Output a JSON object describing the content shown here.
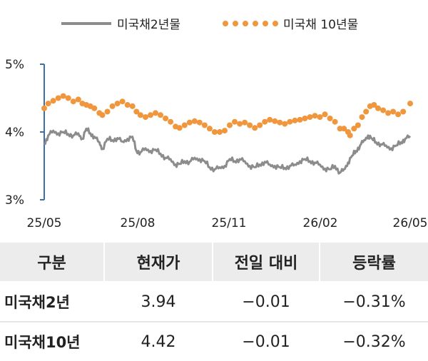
{
  "chart_data": {
    "type": "line",
    "legend_position": "top",
    "x_ticks": [
      "25/05",
      "25/08",
      "25/11",
      "26/02",
      "26/05"
    ],
    "y_ticks": [
      "5%",
      "4%",
      "3%"
    ],
    "ylim": [
      3,
      5
    ],
    "xlim": [
      "2025-05-01",
      "2026-05-01"
    ],
    "grid": false,
    "series": [
      {
        "name": "미국채2년물",
        "style": "solid",
        "color": "#8c8c8c",
        "points": [
          [
            "2025-05-01",
            3.82
          ],
          [
            "2025-05-05",
            3.95
          ],
          [
            "2025-05-10",
            4.02
          ],
          [
            "2025-05-15",
            3.98
          ],
          [
            "2025-05-20",
            4.0
          ],
          [
            "2025-05-25",
            3.97
          ],
          [
            "2025-05-30",
            3.95
          ],
          [
            "2025-06-04",
            3.98
          ],
          [
            "2025-06-08",
            3.9
          ],
          [
            "2025-06-12",
            4.05
          ],
          [
            "2025-06-16",
            3.98
          ],
          [
            "2025-06-20",
            3.93
          ],
          [
            "2025-06-25",
            3.85
          ],
          [
            "2025-06-28",
            3.75
          ],
          [
            "2025-07-03",
            3.9
          ],
          [
            "2025-07-08",
            3.88
          ],
          [
            "2025-07-13",
            3.91
          ],
          [
            "2025-07-18",
            3.86
          ],
          [
            "2025-07-23",
            3.9
          ],
          [
            "2025-07-28",
            3.93
          ],
          [
            "2025-08-01",
            3.72
          ],
          [
            "2025-08-05",
            3.7
          ],
          [
            "2025-08-10",
            3.76
          ],
          [
            "2025-08-15",
            3.72
          ],
          [
            "2025-08-20",
            3.74
          ],
          [
            "2025-08-25",
            3.68
          ],
          [
            "2025-08-30",
            3.62
          ],
          [
            "2025-09-04",
            3.6
          ],
          [
            "2025-09-09",
            3.52
          ],
          [
            "2025-09-13",
            3.53
          ],
          [
            "2025-09-18",
            3.57
          ],
          [
            "2025-09-23",
            3.56
          ],
          [
            "2025-09-28",
            3.62
          ],
          [
            "2025-10-03",
            3.6
          ],
          [
            "2025-10-08",
            3.57
          ],
          [
            "2025-10-13",
            3.48
          ],
          [
            "2025-10-18",
            3.45
          ],
          [
            "2025-10-23",
            3.48
          ],
          [
            "2025-10-28",
            3.5
          ],
          [
            "2025-11-02",
            3.6
          ],
          [
            "2025-11-07",
            3.57
          ],
          [
            "2025-11-12",
            3.6
          ],
          [
            "2025-11-17",
            3.57
          ],
          [
            "2025-11-22",
            3.5
          ],
          [
            "2025-11-27",
            3.48
          ],
          [
            "2025-12-02",
            3.52
          ],
          [
            "2025-12-07",
            3.56
          ],
          [
            "2025-12-12",
            3.52
          ],
          [
            "2025-12-17",
            3.5
          ],
          [
            "2025-12-22",
            3.48
          ],
          [
            "2025-12-27",
            3.47
          ],
          [
            "2026-01-01",
            3.5
          ],
          [
            "2026-01-06",
            3.52
          ],
          [
            "2026-01-11",
            3.57
          ],
          [
            "2026-01-16",
            3.6
          ],
          [
            "2026-01-21",
            3.57
          ],
          [
            "2026-01-26",
            3.55
          ],
          [
            "2026-01-31",
            3.52
          ],
          [
            "2026-02-05",
            3.46
          ],
          [
            "2026-02-10",
            3.45
          ],
          [
            "2026-02-15",
            3.5
          ],
          [
            "2026-02-20",
            3.4
          ],
          [
            "2026-02-24",
            3.45
          ],
          [
            "2026-02-28",
            3.55
          ],
          [
            "2026-03-04",
            3.65
          ],
          [
            "2026-03-08",
            3.72
          ],
          [
            "2026-03-12",
            3.8
          ],
          [
            "2026-03-16",
            3.88
          ],
          [
            "2026-03-20",
            3.95
          ],
          [
            "2026-03-24",
            3.9
          ],
          [
            "2026-03-28",
            3.85
          ],
          [
            "2026-04-02",
            3.82
          ],
          [
            "2026-04-07",
            3.8
          ],
          [
            "2026-04-12",
            3.76
          ],
          [
            "2026-04-17",
            3.8
          ],
          [
            "2026-04-22",
            3.85
          ],
          [
            "2026-04-26",
            3.9
          ],
          [
            "2026-05-01",
            3.94
          ]
        ]
      },
      {
        "name": "미국채 10년물",
        "style": "dotted",
        "color": "#f0963c",
        "points": [
          [
            "2025-05-01",
            4.35
          ],
          [
            "2025-05-05",
            4.42
          ],
          [
            "2025-05-10",
            4.46
          ],
          [
            "2025-05-15",
            4.5
          ],
          [
            "2025-05-20",
            4.53
          ],
          [
            "2025-05-25",
            4.5
          ],
          [
            "2025-05-30",
            4.45
          ],
          [
            "2025-06-04",
            4.48
          ],
          [
            "2025-06-08",
            4.42
          ],
          [
            "2025-06-12",
            4.4
          ],
          [
            "2025-06-16",
            4.38
          ],
          [
            "2025-06-20",
            4.35
          ],
          [
            "2025-06-25",
            4.28
          ],
          [
            "2025-06-28",
            4.25
          ],
          [
            "2025-07-03",
            4.3
          ],
          [
            "2025-07-08",
            4.38
          ],
          [
            "2025-07-13",
            4.42
          ],
          [
            "2025-07-18",
            4.45
          ],
          [
            "2025-07-23",
            4.4
          ],
          [
            "2025-07-28",
            4.38
          ],
          [
            "2025-08-01",
            4.3
          ],
          [
            "2025-08-05",
            4.25
          ],
          [
            "2025-08-10",
            4.22
          ],
          [
            "2025-08-15",
            4.25
          ],
          [
            "2025-08-20",
            4.28
          ],
          [
            "2025-08-25",
            4.25
          ],
          [
            "2025-08-30",
            4.2
          ],
          [
            "2025-09-04",
            4.15
          ],
          [
            "2025-09-09",
            4.08
          ],
          [
            "2025-09-13",
            4.06
          ],
          [
            "2025-09-18",
            4.1
          ],
          [
            "2025-09-23",
            4.14
          ],
          [
            "2025-09-28",
            4.16
          ],
          [
            "2025-10-03",
            4.14
          ],
          [
            "2025-10-08",
            4.1
          ],
          [
            "2025-10-13",
            4.05
          ],
          [
            "2025-10-18",
            4.0
          ],
          [
            "2025-10-23",
            4.0
          ],
          [
            "2025-10-28",
            4.02
          ],
          [
            "2025-11-02",
            4.1
          ],
          [
            "2025-11-07",
            4.15
          ],
          [
            "2025-11-12",
            4.12
          ],
          [
            "2025-11-17",
            4.14
          ],
          [
            "2025-11-22",
            4.1
          ],
          [
            "2025-11-27",
            4.06
          ],
          [
            "2025-12-02",
            4.1
          ],
          [
            "2025-12-07",
            4.15
          ],
          [
            "2025-12-12",
            4.18
          ],
          [
            "2025-12-17",
            4.16
          ],
          [
            "2025-12-22",
            4.14
          ],
          [
            "2025-12-27",
            4.12
          ],
          [
            "2026-01-01",
            4.15
          ],
          [
            "2026-01-06",
            4.17
          ],
          [
            "2026-01-11",
            4.18
          ],
          [
            "2026-01-16",
            4.2
          ],
          [
            "2026-01-21",
            4.22
          ],
          [
            "2026-01-26",
            4.24
          ],
          [
            "2026-01-31",
            4.22
          ],
          [
            "2026-02-05",
            4.26
          ],
          [
            "2026-02-10",
            4.2
          ],
          [
            "2026-02-15",
            4.15
          ],
          [
            "2026-02-20",
            4.05
          ],
          [
            "2026-02-24",
            4.05
          ],
          [
            "2026-02-28",
            4.0
          ],
          [
            "2026-03-02",
            3.95
          ],
          [
            "2026-03-06",
            4.05
          ],
          [
            "2026-03-10",
            4.1
          ],
          [
            "2026-03-14",
            4.22
          ],
          [
            "2026-03-18",
            4.3
          ],
          [
            "2026-03-22",
            4.38
          ],
          [
            "2026-03-26",
            4.4
          ],
          [
            "2026-03-30",
            4.35
          ],
          [
            "2026-04-04",
            4.32
          ],
          [
            "2026-04-09",
            4.28
          ],
          [
            "2026-04-14",
            4.3
          ],
          [
            "2026-04-19",
            4.26
          ],
          [
            "2026-04-24",
            4.3
          ],
          [
            "2026-05-01",
            4.42
          ]
        ]
      }
    ]
  },
  "table": {
    "headers": [
      "구분",
      "현재가",
      "전일 대비",
      "등락률"
    ],
    "rows": [
      {
        "name": "미국채2년",
        "price": "3.94",
        "change": "−0.01",
        "rate": "−0.31%"
      },
      {
        "name": "미국채10년",
        "price": "4.42",
        "change": "−0.01",
        "rate": "−0.32%"
      }
    ]
  }
}
